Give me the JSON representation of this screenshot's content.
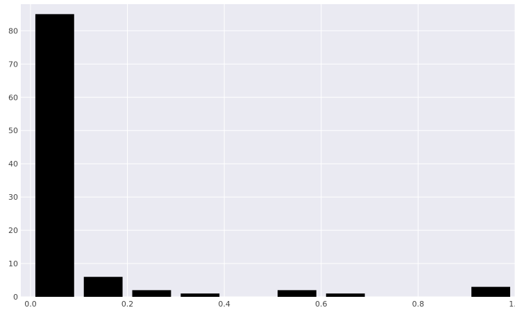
{
  "chart_data": {
    "type": "bar",
    "title": "",
    "xlabel": "",
    "ylabel": "",
    "x_bin_centers": [
      0.05,
      0.15,
      0.25,
      0.35,
      0.45,
      0.55,
      0.65,
      0.75,
      0.85,
      0.95
    ],
    "values": [
      85,
      6,
      2,
      1,
      0,
      2,
      1,
      0,
      0,
      3
    ],
    "bin_width": 0.1,
    "bar_fraction_of_bin": 0.8,
    "xlim": [
      -0.02,
      1.0
    ],
    "ylim": [
      0,
      88
    ],
    "x_ticks": [
      0.0,
      0.2,
      0.4,
      0.6,
      0.8,
      1.0
    ],
    "x_tick_labels": [
      "0.0",
      "0.2",
      "0.4",
      "0.6",
      "0.8",
      "1.0"
    ],
    "y_ticks": [
      0,
      10,
      20,
      30,
      40,
      50,
      60,
      70,
      80
    ],
    "y_tick_labels": [
      "0",
      "10",
      "20",
      "30",
      "40",
      "50",
      "60",
      "70",
      "80"
    ],
    "grid": true,
    "colors": {
      "background": "#eaeaf2",
      "grid": "#ffffff",
      "bar": "#000000"
    }
  }
}
